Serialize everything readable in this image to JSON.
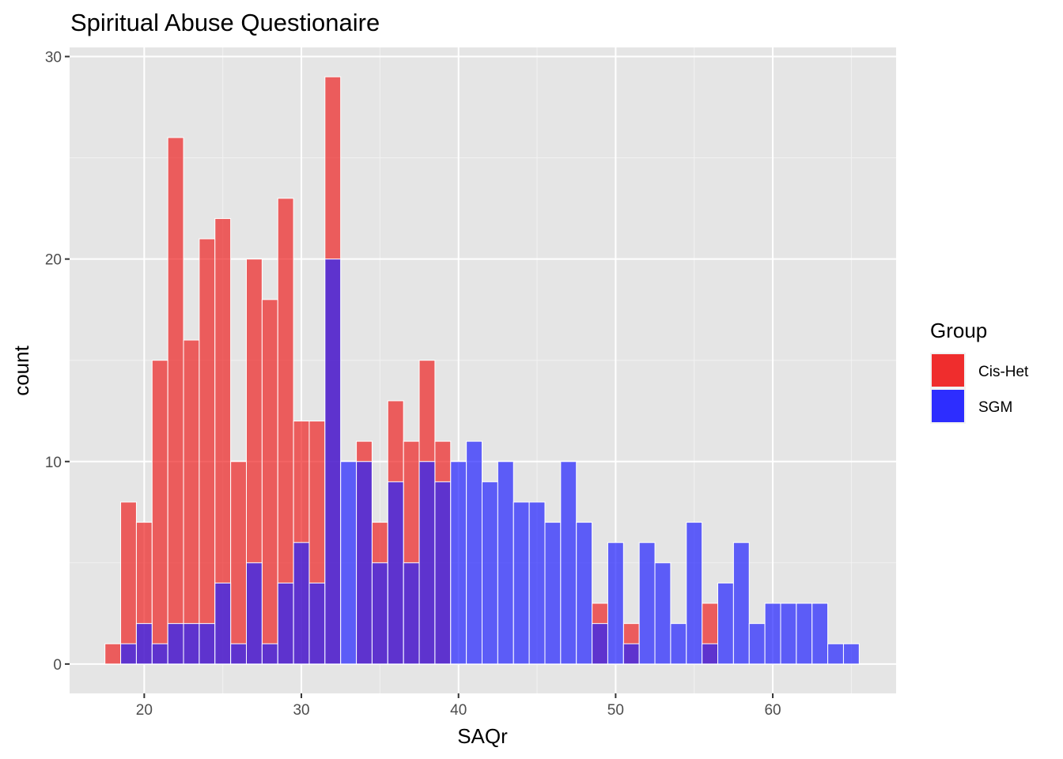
{
  "chart_data": {
    "type": "bar",
    "title": "Spiritual Abuse Questionaire",
    "xlabel": "SAQr",
    "ylabel": "count",
    "xlim": [
      15.25,
      67.85
    ],
    "ylim": [
      -1.45,
      30.45
    ],
    "x_ticks": [
      20,
      30,
      40,
      50,
      60
    ],
    "x_tick_labels": [
      "20",
      "30",
      "40",
      "50",
      "60"
    ],
    "y_ticks": [
      0,
      10,
      20,
      30
    ],
    "y_tick_labels": [
      "0",
      "10",
      "20",
      "30"
    ],
    "grid": true,
    "bin_width": 1,
    "legend": {
      "title": "Group",
      "position": "right"
    },
    "x": [
      18,
      19,
      20,
      21,
      22,
      23,
      24,
      25,
      26,
      27,
      28,
      29,
      30,
      31,
      32,
      33,
      34,
      35,
      36,
      37,
      38,
      39,
      40,
      41,
      42,
      43,
      44,
      45,
      46,
      47,
      48,
      49,
      50,
      51,
      52,
      53,
      54,
      55,
      56,
      57,
      58,
      59,
      60,
      61,
      62,
      63,
      64,
      65
    ],
    "series": [
      {
        "name": "Cis-Het",
        "color": "#ee2222",
        "opacity": 0.7,
        "values": [
          1,
          8,
          7,
          15,
          26,
          16,
          21,
          22,
          10,
          20,
          18,
          23,
          12,
          12,
          29,
          0,
          11,
          7,
          13,
          11,
          15,
          11,
          0,
          0,
          0,
          0,
          0,
          0,
          0,
          0,
          0,
          3,
          0,
          2,
          0,
          0,
          0,
          0,
          3,
          0,
          0,
          0,
          0,
          0,
          0,
          0,
          0,
          0
        ]
      },
      {
        "name": "SGM",
        "color": "#2222ff",
        "opacity": 0.7,
        "values": [
          0,
          1,
          2,
          1,
          2,
          2,
          2,
          4,
          1,
          5,
          1,
          4,
          6,
          4,
          20,
          10,
          10,
          5,
          9,
          5,
          10,
          9,
          10,
          11,
          9,
          10,
          8,
          8,
          7,
          10,
          7,
          2,
          6,
          1,
          6,
          5,
          2,
          7,
          1,
          4,
          6,
          2,
          3,
          3,
          3,
          3,
          1,
          1
        ]
      }
    ]
  }
}
